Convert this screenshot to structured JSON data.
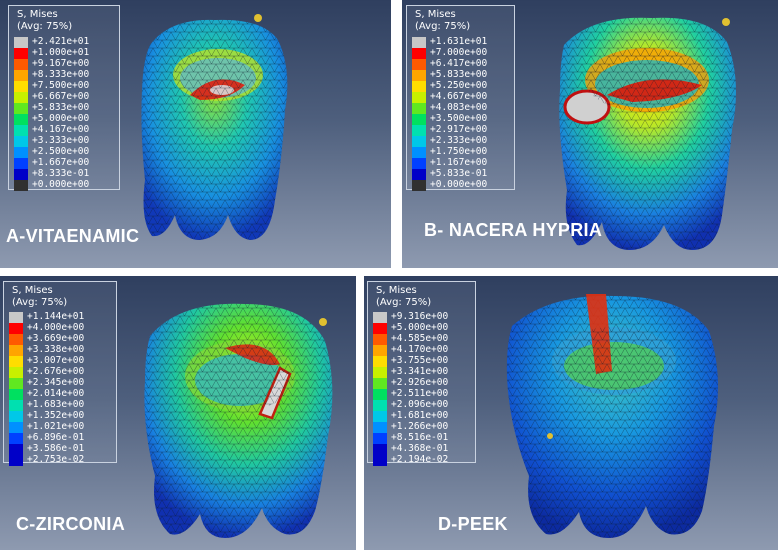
{
  "colors": {
    "scale": [
      "#c8c8c8",
      "#ff0000",
      "#ff5a00",
      "#ffa500",
      "#ffdd00",
      "#c8f000",
      "#60e820",
      "#00e060",
      "#00e0b0",
      "#00c8e8",
      "#0090ff",
      "#0040ff",
      "#0000c8",
      "#303030"
    ]
  },
  "panels": [
    {
      "label": "A-VITAENAMIC",
      "legend_title": [
        "S, Mises",
        "(Avg: 75%)"
      ],
      "values": [
        "+2.421e+01",
        "+1.000e+01",
        "+9.167e+00",
        "+8.333e+00",
        "+7.500e+00",
        "+6.667e+00",
        "+5.833e+00",
        "+5.000e+00",
        "+4.167e+00",
        "+3.333e+00",
        "+2.500e+00",
        "+1.667e+00",
        "+8.333e-01",
        "+0.000e+00"
      ]
    },
    {
      "label": "B- NACERA HYPRIA",
      "legend_title": [
        "S, Mises",
        "(Avg: 75%)"
      ],
      "values": [
        "+1.631e+01",
        "+7.000e+00",
        "+6.417e+00",
        "+5.833e+00",
        "+5.250e+00",
        "+4.667e+00",
        "+4.083e+00",
        "+3.500e+00",
        "+2.917e+00",
        "+2.333e+00",
        "+1.750e+00",
        "+1.167e+00",
        "+5.833e-01",
        "+0.000e+00"
      ]
    },
    {
      "label": "C-ZIRCONIA",
      "legend_title": [
        "S, Mises",
        "(Avg: 75%)"
      ],
      "values": [
        "+1.144e+01",
        "+4.000e+00",
        "+3.669e+00",
        "+3.338e+00",
        "+3.007e+00",
        "+2.676e+00",
        "+2.345e+00",
        "+2.014e+00",
        "+1.683e+00",
        "+1.352e+00",
        "+1.021e+00",
        "+6.896e-01",
        "+3.586e-01",
        "+2.753e-02"
      ]
    },
    {
      "label": "D-PEEK",
      "legend_title": [
        "S, Mises",
        "(Avg: 75%)"
      ],
      "values": [
        "+9.316e+00",
        "+5.000e+00",
        "+4.585e+00",
        "+4.170e+00",
        "+3.755e+00",
        "+3.341e+00",
        "+2.926e+00",
        "+2.511e+00",
        "+2.096e+00",
        "+1.681e+00",
        "+1.266e+00",
        "+8.516e-01",
        "+4.368e-01",
        "+2.194e-02"
      ]
    }
  ]
}
